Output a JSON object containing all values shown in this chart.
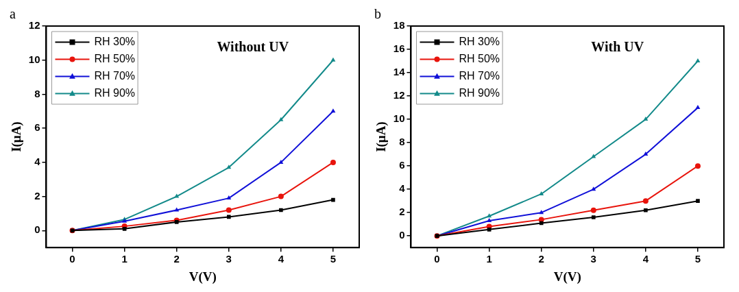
{
  "chart_data": [
    {
      "type": "line",
      "title": "a",
      "xlabel": "V(V)",
      "ylabel": "I(μA)",
      "annotations": [
        "Without UV"
      ],
      "x": [
        0,
        1,
        2,
        3,
        4,
        5
      ],
      "xlim": [
        -0.5,
        5.5
      ],
      "xticks": [
        0,
        1,
        2,
        3,
        4,
        5
      ],
      "ylim": [
        -1,
        12
      ],
      "yticks": [
        0,
        2,
        4,
        6,
        8,
        10,
        12
      ],
      "legend": "top left",
      "line_style": "solid",
      "series": [
        {
          "name": "RH 30%",
          "color": "#000000",
          "marker": "square",
          "values": [
            0,
            0.1,
            0.5,
            0.8,
            1.2,
            1.8
          ]
        },
        {
          "name": "RH 50%",
          "color": "#e8140c",
          "marker": "circle",
          "values": [
            0,
            0.25,
            0.6,
            1.2,
            2,
            4
          ]
        },
        {
          "name": "RH 70%",
          "color": "#1010d8",
          "marker": "triangle",
          "values": [
            0,
            0.55,
            1.2,
            1.9,
            4,
            7
          ]
        },
        {
          "name": "RH 90%",
          "color": "#138a8a",
          "marker": "triangle",
          "values": [
            0,
            0.65,
            2,
            3.7,
            6.5,
            10
          ]
        }
      ]
    },
    {
      "type": "line",
      "title": "b",
      "xlabel": "V(V)",
      "ylabel": "I(μA)",
      "annotations": [
        "With UV"
      ],
      "x": [
        0,
        1,
        2,
        3,
        4,
        5
      ],
      "xlim": [
        -0.5,
        5.5
      ],
      "xticks": [
        0,
        1,
        2,
        3,
        4,
        5
      ],
      "ylim": [
        -1,
        18
      ],
      "yticks": [
        0,
        2,
        4,
        6,
        8,
        10,
        12,
        14,
        16,
        18
      ],
      "legend": "top left",
      "line_style": "solid",
      "series": [
        {
          "name": "RH 30%",
          "color": "#000000",
          "marker": "square",
          "values": [
            0,
            0.55,
            1.1,
            1.6,
            2.2,
            3
          ]
        },
        {
          "name": "RH 50%",
          "color": "#e8140c",
          "marker": "circle",
          "values": [
            0,
            0.8,
            1.4,
            2.2,
            3,
            6
          ]
        },
        {
          "name": "RH 70%",
          "color": "#1010d8",
          "marker": "triangle",
          "values": [
            0,
            1.3,
            2,
            4,
            7,
            11
          ]
        },
        {
          "name": "RH 90%",
          "color": "#138a8a",
          "marker": "triangle",
          "values": [
            0,
            1.7,
            3.6,
            6.8,
            10,
            15
          ]
        }
      ]
    }
  ]
}
